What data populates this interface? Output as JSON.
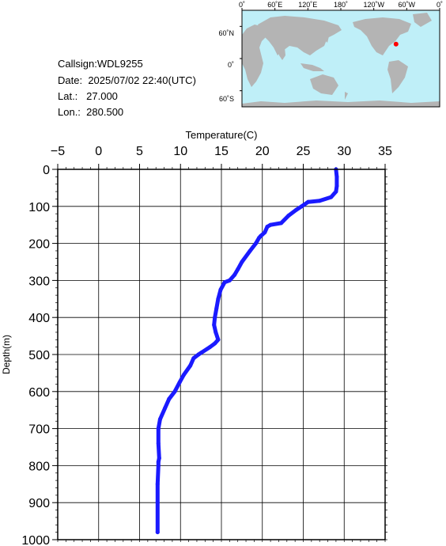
{
  "station": {
    "callsign_label": "Callsign:",
    "callsign": "WDL9255",
    "date_label": "Date:",
    "date": "2025/07/02 22:40(UTC)",
    "lat_label": "Lat.:",
    "lat": "27.000",
    "lon_label": "Lon.:",
    "lon": "280.500"
  },
  "map": {
    "top_labels": [
      "0˚",
      "60˚E",
      "120˚E",
      "180˚",
      "120˚W",
      "60˚W",
      "0˚"
    ],
    "lat_labels": [
      "60˚N",
      "0˚",
      "60˚S"
    ],
    "ocean_color": "#bfeff8",
    "land_color": "#b4b4b4",
    "marker_color": "#ff0000",
    "marker_lon": 280.5,
    "marker_lat": 27.0
  },
  "chart_data": {
    "type": "line",
    "title": "",
    "xlabel": "Temperature(C)",
    "ylabel": "Depth(m)",
    "xlim": [
      -5,
      35
    ],
    "ylim": [
      0,
      1000
    ],
    "x_ticks": [
      -5,
      0,
      5,
      10,
      15,
      20,
      25,
      30,
      35
    ],
    "y_ticks": [
      0,
      100,
      200,
      300,
      400,
      500,
      600,
      700,
      800,
      900,
      1000
    ],
    "tick_labels_x": [
      "−5",
      "0",
      "5",
      "10",
      "15",
      "20",
      "25",
      "30",
      "35"
    ],
    "tick_labels_y": [
      "0",
      "100",
      "200",
      "300",
      "400",
      "500",
      "600",
      "700",
      "800",
      "900",
      "1000"
    ],
    "grid": true,
    "line_color": "#1a1aff",
    "series": [
      {
        "temperature": [
          29.0,
          29.1,
          29.1,
          29.0,
          28.4,
          27.0,
          25.6,
          24.8,
          24.1,
          23.2,
          22.3,
          21.0,
          20.6,
          20.3,
          19.8,
          19.6,
          19.2,
          18.5,
          17.5,
          17.0,
          16.6,
          16.0,
          15.4,
          14.9,
          14.6,
          14.4,
          14.2,
          14.1,
          14.3,
          14.6,
          14.2,
          13.6,
          12.2,
          11.6,
          11.2,
          10.4,
          9.9,
          9.3,
          8.6,
          8.1,
          7.5,
          7.3,
          7.3,
          7.4,
          7.3,
          7.3,
          7.2,
          7.2,
          7.2
        ],
        "depth": [
          0,
          20,
          45,
          60,
          75,
          85,
          88,
          100,
          110,
          125,
          145,
          150,
          155,
          170,
          180,
          185,
          200,
          220,
          250,
          270,
          285,
          300,
          305,
          325,
          350,
          375,
          400,
          420,
          440,
          460,
          470,
          480,
          500,
          510,
          530,
          555,
          575,
          600,
          620,
          645,
          675,
          700,
          740,
          780,
          790,
          800,
          850,
          900,
          980
        ]
      }
    ]
  }
}
